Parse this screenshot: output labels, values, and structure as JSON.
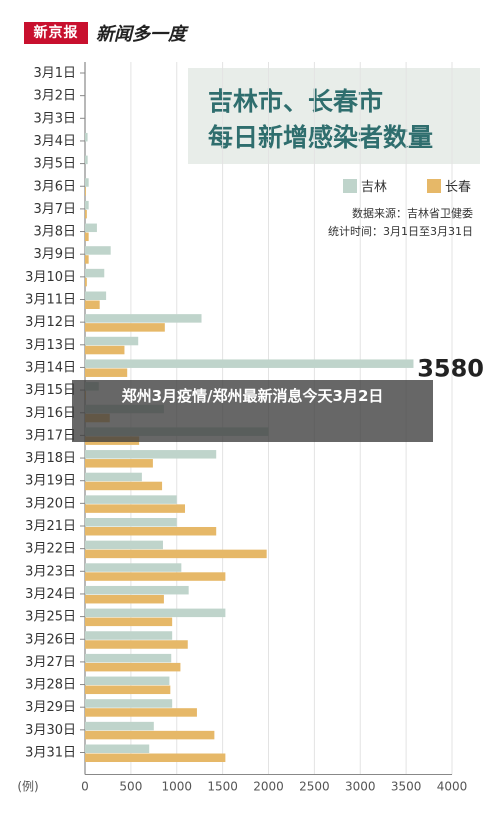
{
  "header": {
    "logo_box": "新京报",
    "logo_text": "新闻多一度"
  },
  "title": {
    "line1": "吉林市、长春市",
    "line2": "每日新增感染者数量"
  },
  "source": {
    "line1": "数据来源：吉林省卫健委",
    "line2": "统计时间：3月1日至3月31日"
  },
  "overlay": {
    "text": "郑州3月疫情/郑州最新消息今天3月2日"
  },
  "colors": {
    "jilin": "#bfd4cb",
    "changchun": "#e6b868",
    "axis": "#999999",
    "text": "#333333"
  },
  "chart_data": {
    "type": "bar",
    "orientation": "horizontal",
    "unit_label": "(例)",
    "categories": [
      "3月1日",
      "3月2日",
      "3月3日",
      "3月4日",
      "3月5日",
      "3月6日",
      "3月7日",
      "3月8日",
      "3月9日",
      "3月10日",
      "3月11日",
      "3月12日",
      "3月13日",
      "3月14日",
      "3月15日",
      "3月16日",
      "3月17日",
      "3月18日",
      "3月19日",
      "3月20日",
      "3月21日",
      "3月22日",
      "3月23日",
      "3月24日",
      "3月25日",
      "3月26日",
      "3月27日",
      "3月28日",
      "3月29日",
      "3月30日",
      "3月31日"
    ],
    "series": [
      {
        "name": "吉林",
        "color": "#bfd4cb",
        "values": [
          0,
          0,
          0,
          28,
          29,
          40,
          40,
          130,
          280,
          210,
          230,
          1270,
          580,
          3580,
          150,
          860,
          2000,
          1430,
          620,
          1000,
          1000,
          850,
          1050,
          1130,
          1530,
          950,
          940,
          920,
          950,
          750,
          700
        ]
      },
      {
        "name": "长春",
        "color": "#e6b868",
        "values": [
          0,
          0,
          0,
          0,
          0,
          10,
          20,
          40,
          40,
          20,
          160,
          870,
          430,
          460,
          10,
          270,
          590,
          740,
          840,
          1090,
          1430,
          1980,
          1530,
          860,
          950,
          1120,
          1040,
          930,
          1220,
          1410,
          1530
        ]
      }
    ],
    "xlim": [
      0,
      4000
    ],
    "xticks": [
      0,
      500,
      1000,
      1500,
      2000,
      2500,
      3000,
      3500,
      4000
    ],
    "annotation": "3580",
    "legend_position": "upper-right"
  }
}
